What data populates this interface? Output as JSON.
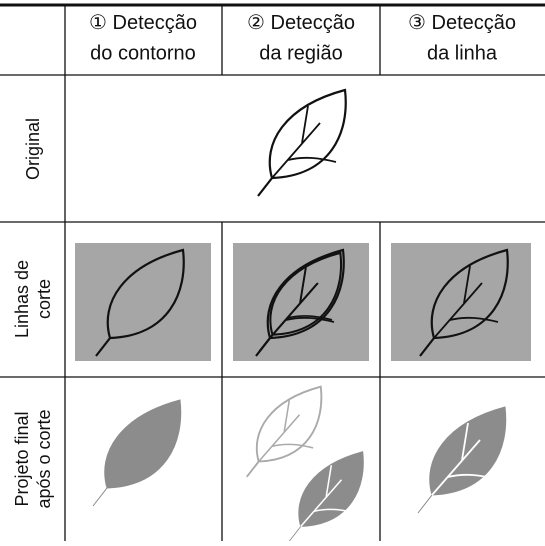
{
  "table": {
    "columns": [
      {
        "marker": "①",
        "line1": "Detecção",
        "line2": "do contorno"
      },
      {
        "marker": "②",
        "line1": "Detecção",
        "line2": "da região"
      },
      {
        "marker": "③",
        "line1": "Detecção",
        "line2": "da linha"
      }
    ],
    "rows": [
      {
        "lines": [
          "Original"
        ]
      },
      {
        "lines": [
          "Linhas de",
          "corte"
        ]
      },
      {
        "lines": [
          "Projeto final",
          "após o corte"
        ]
      }
    ]
  }
}
